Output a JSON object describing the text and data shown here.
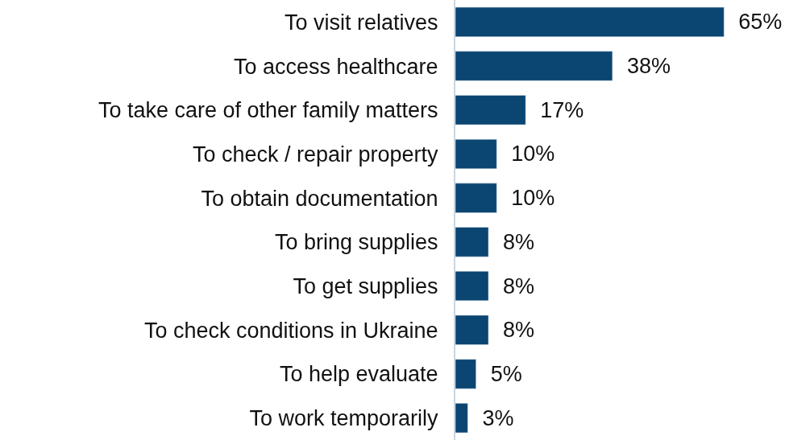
{
  "chart_data": {
    "type": "bar",
    "orientation": "horizontal",
    "categories": [
      "To visit relatives",
      "To access healthcare",
      "To take care of other family matters",
      "To check / repair property",
      "To obtain documentation",
      "To bring supplies",
      "To get supplies",
      "To check conditions in Ukraine",
      "To help evaluate",
      "To work temporarily"
    ],
    "values": [
      65,
      38,
      17,
      10,
      10,
      8,
      8,
      8,
      5,
      3
    ],
    "value_labels": [
      "65%",
      "38%",
      "17%",
      "10%",
      "10%",
      "8%",
      "8%",
      "8%",
      "5%",
      "3%"
    ],
    "color": "#0b4572",
    "legend": false
  }
}
